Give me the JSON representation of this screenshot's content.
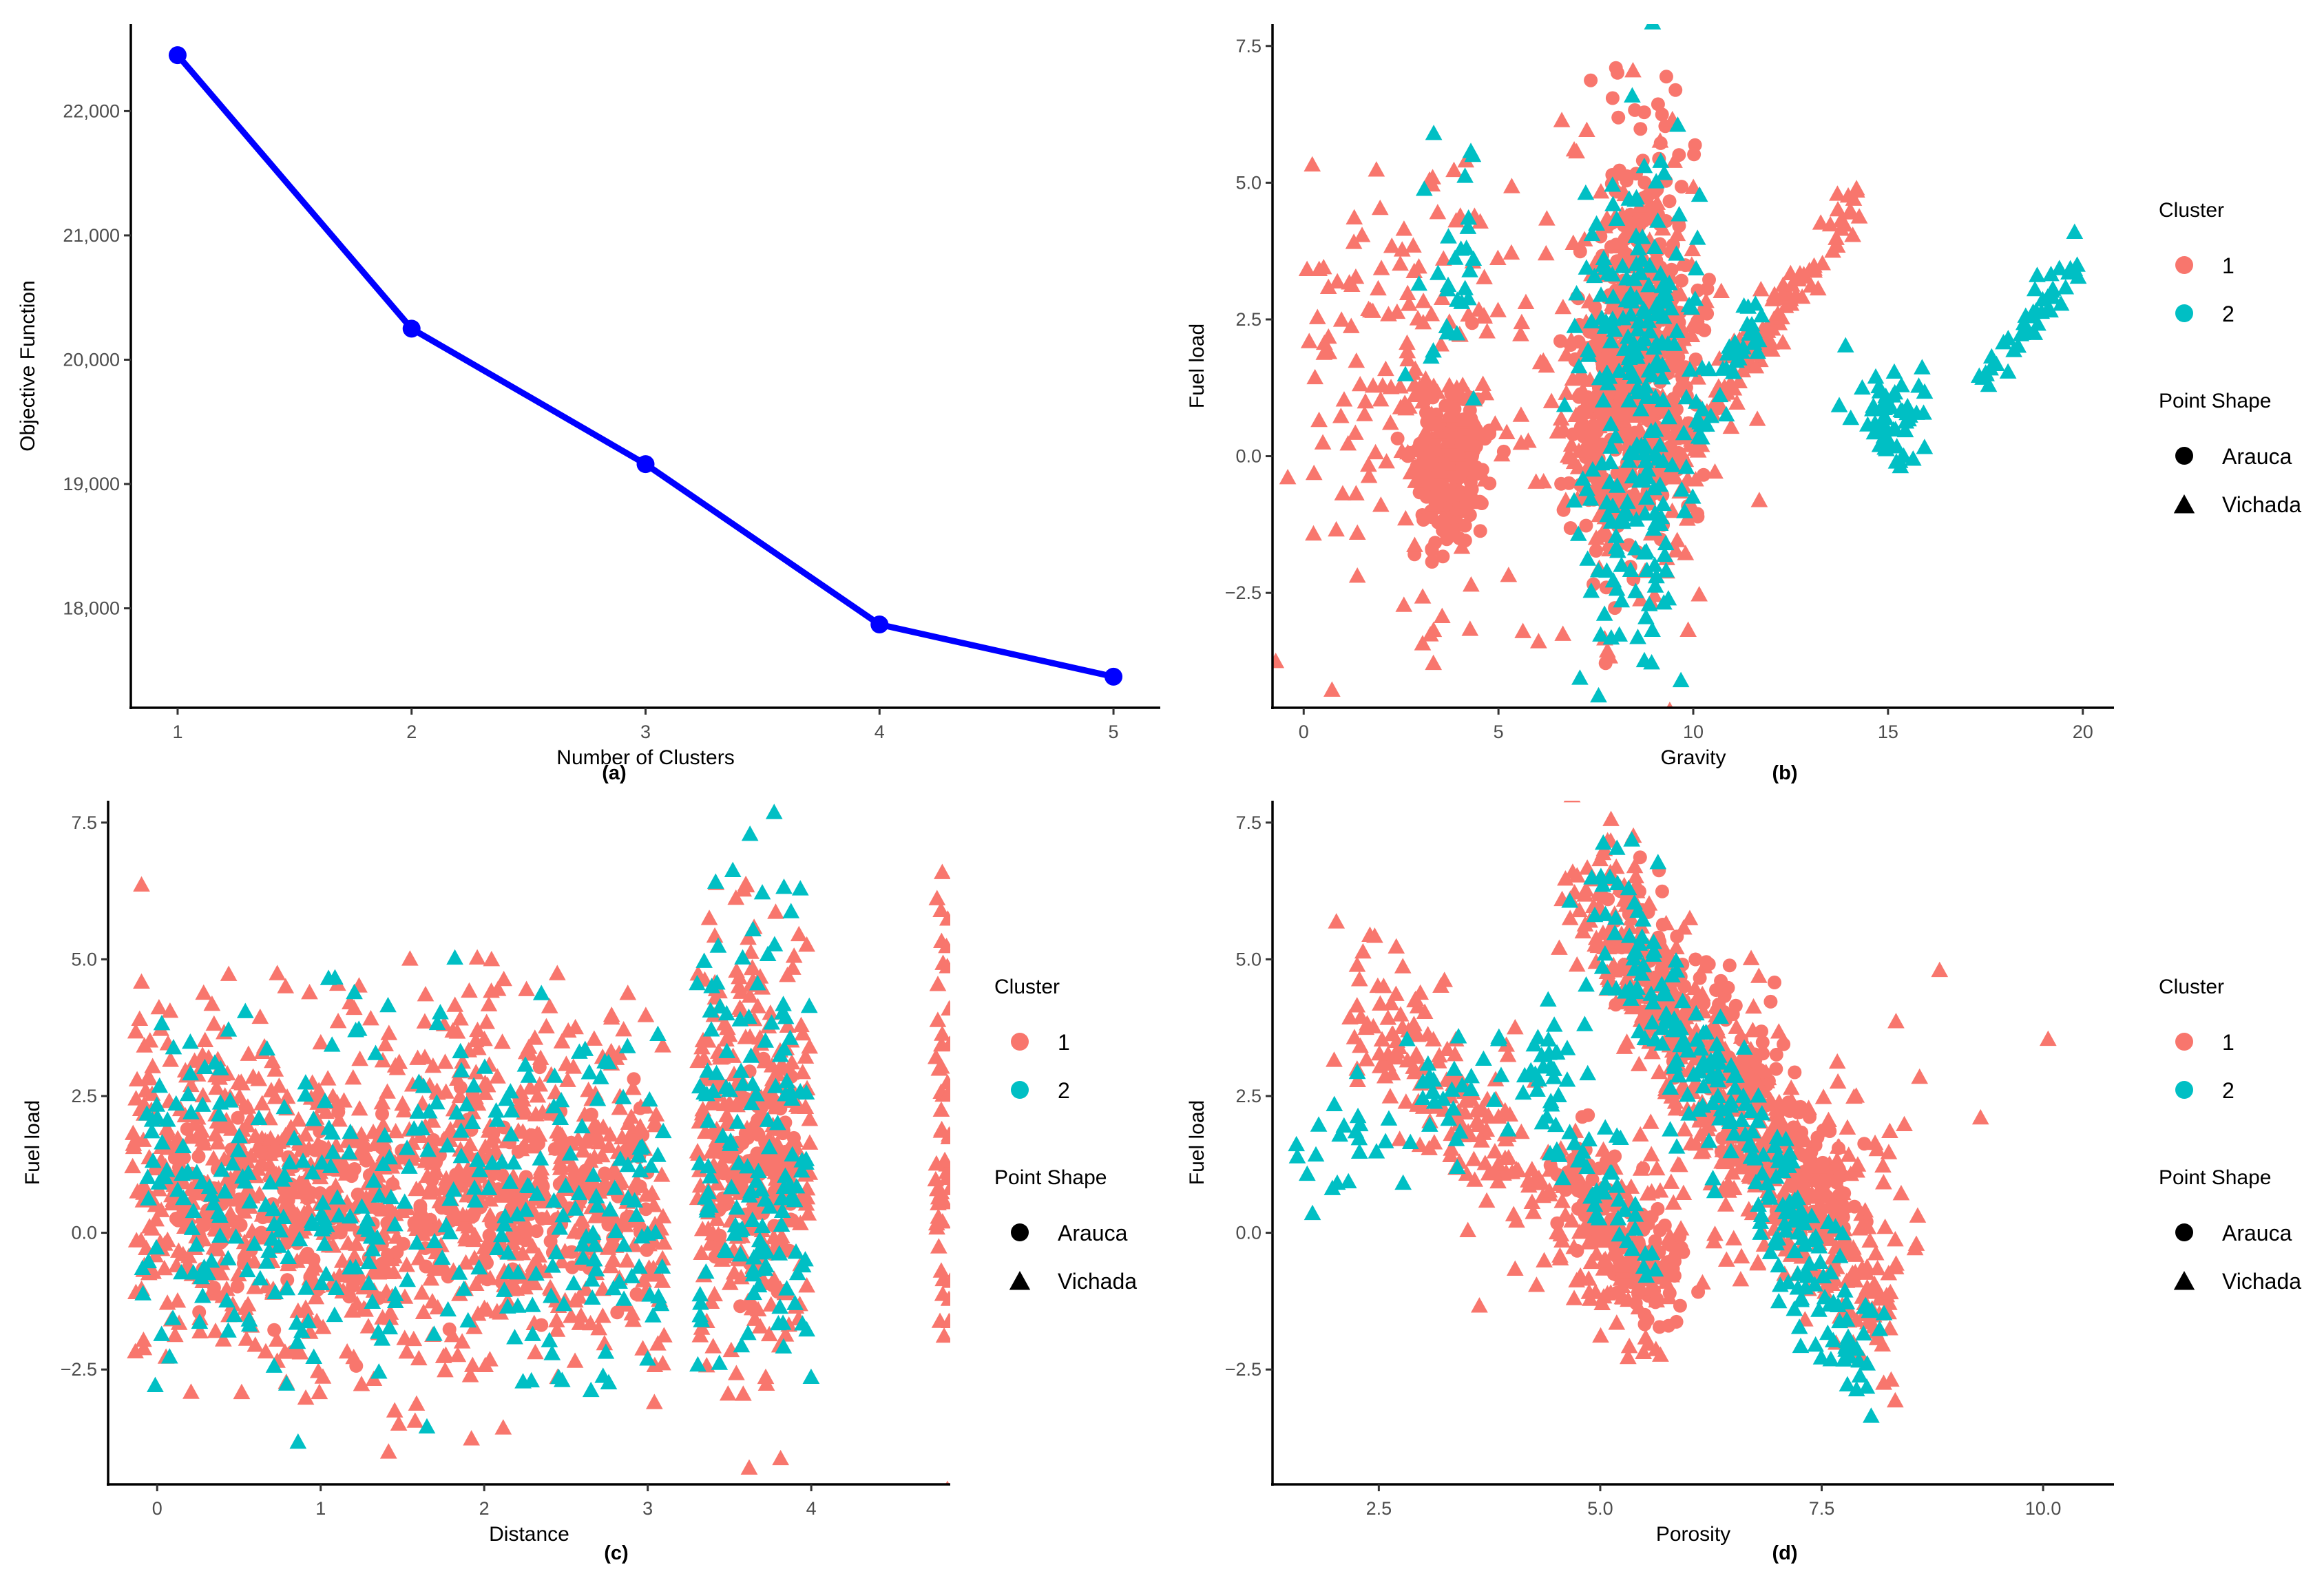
{
  "chart_data": [
    {
      "id": "a",
      "type": "line",
      "panel_label": "(a)",
      "xlabel": "Number of Clusters",
      "ylabel": "Objective Function",
      "x": [
        1,
        2,
        3,
        4,
        5
      ],
      "values": [
        22450,
        20250,
        19160,
        17870,
        17450
      ],
      "xlim": [
        0.8,
        5.2
      ],
      "ylim": [
        17200,
        22700
      ],
      "xticks": [
        1,
        2,
        3,
        4,
        5
      ],
      "xtick_labels": [
        "1",
        "2",
        "3",
        "4",
        "5"
      ],
      "yticks": [
        18000,
        19000,
        20000,
        21000,
        22000
      ],
      "ytick_labels": [
        "18,000",
        "19,000",
        "20,000",
        "21,000",
        "22,000"
      ],
      "color": "#0000ff"
    },
    {
      "id": "b",
      "type": "scatter",
      "panel_label": "(b)",
      "xlabel": "Gravity",
      "ylabel": "Fuel load",
      "xlim": [
        -0.8,
        20.8
      ],
      "ylim": [
        -4.6,
        7.9
      ],
      "xticks": [
        0,
        5,
        10,
        15,
        20
      ],
      "xtick_labels": [
        "0",
        "5",
        "10",
        "15",
        "20"
      ],
      "yticks": [
        -2.5,
        0,
        2.5,
        5,
        7.5
      ],
      "ytick_labels": [
        "−2.5",
        "0.0",
        "2.5",
        "5.0",
        "7.5"
      ],
      "series": [
        {
          "name": "1",
          "color": "#f8766d",
          "groups": [
            {
              "shape": "circle",
              "cx": 3.7,
              "cy": -0.2,
              "sx": 0.45,
              "sy": 0.7,
              "n": 230,
              "seed": 11
            },
            {
              "shape": "triangle",
              "cx": 3.4,
              "cy": 1.5,
              "sx": 1.2,
              "sy": 2.0,
              "n": 130,
              "seed": 12
            },
            {
              "shape": "circle",
              "cx": 8.8,
              "cy": 2.5,
              "sx": 0.7,
              "sy": 1.8,
              "n": 330,
              "seed": 13
            },
            {
              "shape": "triangle",
              "cx": 8.5,
              "cy": 1.3,
              "sx": 1.0,
              "sy": 2.2,
              "n": 260,
              "seed": 14
            },
            {
              "shape": "circle",
              "cx": 7.8,
              "cy": 0.4,
              "sx": 0.5,
              "sy": 1.0,
              "n": 120,
              "seed": 15
            },
            {
              "shape": "triangle",
              "x0": 9.8,
              "y0": 0.3,
              "x1": 14.2,
              "y1": 4.6,
              "spread": 0.12,
              "n": 110,
              "seed": 16
            },
            {
              "shape": "triangle",
              "cx": 1.0,
              "cy": 2.4,
              "sx": 0.8,
              "sy": 1.1,
              "n": 28,
              "seed": 17
            },
            {
              "shape": "triangle",
              "cx": 4.8,
              "cy": 0.3,
              "sx": 2.8,
              "sy": 2.8,
              "n": 40,
              "seed": 18
            }
          ]
        },
        {
          "name": "2",
          "color": "#00bfc4",
          "groups": [
            {
              "shape": "triangle",
              "cx": 8.6,
              "cy": 1.0,
              "sx": 0.75,
              "sy": 2.3,
              "n": 230,
              "seed": 21
            },
            {
              "shape": "triangle",
              "x0": 10.0,
              "y0": 0.6,
              "x1": 11.8,
              "y1": 2.6,
              "spread": 0.15,
              "n": 35,
              "seed": 22
            },
            {
              "shape": "triangle",
              "cx": 15.1,
              "cy": 0.8,
              "sx": 0.45,
              "sy": 0.45,
              "n": 55,
              "seed": 23
            },
            {
              "shape": "triangle",
              "x0": 17.3,
              "y0": 1.3,
              "x1": 19.9,
              "y1": 3.6,
              "spread": 0.12,
              "n": 45,
              "seed": 24
            },
            {
              "shape": "triangle",
              "cx": 3.9,
              "cy": 3.6,
              "sx": 0.5,
              "sy": 1.3,
              "n": 28,
              "seed": 25
            }
          ]
        }
      ],
      "legend": {
        "cluster_title": "Cluster",
        "clusters": [
          "1",
          "2"
        ],
        "shape_title": "Point Shape",
        "shapes": [
          "Arauca",
          "Vichada"
        ]
      }
    },
    {
      "id": "c",
      "type": "scatter",
      "panel_label": "(c)",
      "xlabel": "Distance",
      "ylabel": "Fuel load",
      "xlim": [
        -0.3,
        4.85
      ],
      "ylim": [
        -4.6,
        7.9
      ],
      "xticks": [
        0,
        1,
        2,
        3,
        4
      ],
      "xtick_labels": [
        "0",
        "1",
        "2",
        "3",
        "4"
      ],
      "yticks": [
        -2.5,
        0,
        2.5,
        5,
        7.5
      ],
      "ytick_labels": [
        "−2.5",
        "0.0",
        "2.5",
        "5.0",
        "7.5"
      ],
      "series": [
        {
          "name": "1",
          "color": "#f8766d",
          "groups": [
            {
              "shape": "triangle",
              "uniform": true,
              "x0": -0.15,
              "x1": 3.1,
              "cy": 0.8,
              "sy": 1.6,
              "n": 950,
              "seed": 31
            },
            {
              "shape": "circle",
              "uniform": true,
              "x0": 0.1,
              "x1": 3.0,
              "cy": 0.5,
              "sy": 0.9,
              "n": 300,
              "seed": 32
            },
            {
              "shape": "triangle",
              "uniform": true,
              "x0": 3.3,
              "x1": 4.0,
              "cy": 1.6,
              "sy": 2.2,
              "n": 280,
              "seed": 33
            },
            {
              "shape": "circle",
              "uniform": true,
              "x0": 3.4,
              "x1": 3.9,
              "cy": 0.9,
              "sy": 1.0,
              "n": 110,
              "seed": 34
            },
            {
              "shape": "triangle",
              "uniform": true,
              "x0": 4.76,
              "x1": 4.85,
              "cy": 1.8,
              "sy": 2.3,
              "n": 55,
              "seed": 35
            }
          ]
        },
        {
          "name": "2",
          "color": "#00bfc4",
          "groups": [
            {
              "shape": "triangle",
              "uniform": true,
              "x0": -0.1,
              "x1": 3.1,
              "cy": 0.6,
              "sy": 1.7,
              "n": 330,
              "seed": 41
            },
            {
              "shape": "triangle",
              "uniform": true,
              "x0": 3.3,
              "x1": 4.0,
              "cy": 1.2,
              "sy": 2.2,
              "n": 140,
              "seed": 42
            }
          ]
        }
      ],
      "legend": {
        "cluster_title": "Cluster",
        "clusters": [
          "1",
          "2"
        ],
        "shape_title": "Point Shape",
        "shapes": [
          "Arauca",
          "Vichada"
        ]
      }
    },
    {
      "id": "d",
      "type": "scatter",
      "panel_label": "(d)",
      "xlabel": "Porosity",
      "ylabel": "Fuel load",
      "xlim": [
        1.3,
        10.8
      ],
      "ylim": [
        -4.6,
        7.9
      ],
      "xticks": [
        2.5,
        5,
        7.5,
        10
      ],
      "xtick_labels": [
        "2.5",
        "5.0",
        "7.5",
        "10.0"
      ],
      "yticks": [
        -2.5,
        0,
        2.5,
        5,
        7.5
      ],
      "ytick_labels": [
        "−2.5",
        "0.0",
        "2.5",
        "5.0",
        "7.5"
      ],
      "series": [
        {
          "name": "1",
          "color": "#f8766d",
          "groups": [
            {
              "shape": "triangle",
              "x0": 4.8,
              "y0": 6.3,
              "x1": 8.2,
              "y1": -1.5,
              "spread": 0.35,
              "n": 480,
              "seed": 51
            },
            {
              "shape": "circle",
              "x0": 5.2,
              "y0": 5.8,
              "x1": 7.8,
              "y1": 0.4,
              "spread": 0.3,
              "n": 220,
              "seed": 52
            },
            {
              "shape": "triangle",
              "x0": 2.2,
              "y0": 4.3,
              "x1": 5.6,
              "y1": -1.3,
              "spread": 0.3,
              "n": 260,
              "seed": 53
            },
            {
              "shape": "circle",
              "x0": 4.6,
              "y0": 1.2,
              "x1": 5.8,
              "y1": -1.0,
              "spread": 0.25,
              "n": 140,
              "seed": 54
            },
            {
              "shape": "triangle",
              "cx": 6.6,
              "cy": 1.4,
              "sx": 1.3,
              "sy": 1.5,
              "n": 130,
              "seed": 55
            }
          ]
        },
        {
          "name": "2",
          "color": "#00bfc4",
          "groups": [
            {
              "shape": "triangle",
              "x0": 1.5,
              "y0": 1.2,
              "x1": 4.8,
              "y1": 3.6,
              "spread": 0.25,
              "n": 70,
              "seed": 61
            },
            {
              "shape": "triangle",
              "x0": 5.0,
              "y0": 6.0,
              "x1": 8.0,
              "y1": -2.3,
              "spread": 0.3,
              "n": 240,
              "seed": 62
            },
            {
              "shape": "triangle",
              "x0": 4.4,
              "y0": 2.5,
              "x1": 5.6,
              "y1": -0.5,
              "spread": 0.25,
              "n": 50,
              "seed": 63
            }
          ]
        }
      ],
      "legend": {
        "cluster_title": "Cluster",
        "clusters": [
          "1",
          "2"
        ],
        "shape_title": "Point Shape",
        "shapes": [
          "Arauca",
          "Vichada"
        ]
      }
    }
  ]
}
